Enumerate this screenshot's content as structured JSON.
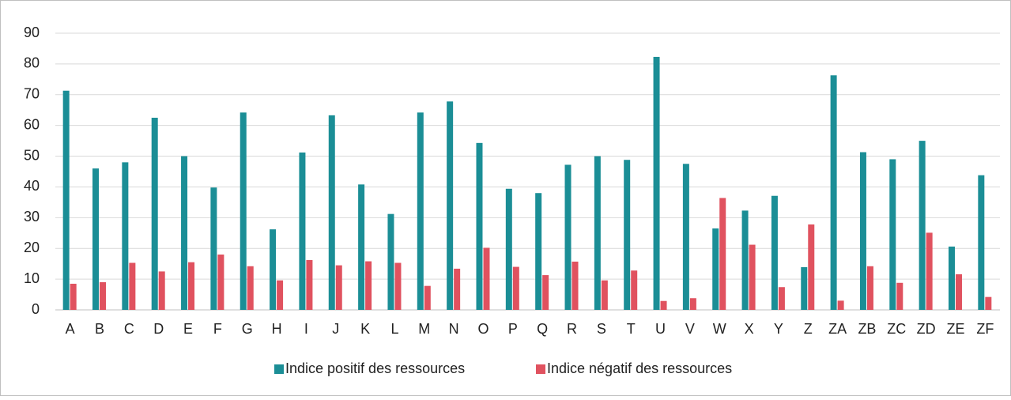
{
  "chart_data": {
    "type": "bar",
    "categories": [
      "A",
      "B",
      "C",
      "D",
      "E",
      "F",
      "G",
      "H",
      "I",
      "J",
      "K",
      "L",
      "M",
      "N",
      "O",
      "P",
      "Q",
      "R",
      "S",
      "T",
      "U",
      "V",
      "W",
      "X",
      "Y",
      "Z",
      "ZA",
      "ZB",
      "ZC",
      "ZD",
      "ZE",
      "ZF"
    ],
    "series": [
      {
        "name": "Indice positif des ressources",
        "color": "#1b8e96",
        "values": [
          71.3,
          46,
          48,
          62.5,
          50,
          39.8,
          64.2,
          26.2,
          51.2,
          63.3,
          40.8,
          31.2,
          64.2,
          67.8,
          54.3,
          39.4,
          38,
          47.2,
          50,
          48.8,
          82.3,
          47.5,
          26.5,
          32.3,
          37.1,
          13.9,
          76.3,
          51.3,
          49,
          55,
          20.6,
          43.8
        ]
      },
      {
        "name": "Indice négatif des ressources",
        "color": "#e0525f",
        "values": [
          8.5,
          9,
          15.3,
          12.5,
          15.5,
          18,
          14.2,
          9.6,
          16.2,
          14.5,
          15.8,
          15.3,
          7.8,
          13.4,
          20.2,
          14,
          11.3,
          15.7,
          9.6,
          12.8,
          2.9,
          3.8,
          36.4,
          21.2,
          7.4,
          27.8,
          3,
          14.2,
          8.8,
          25.1,
          11.6,
          4.2
        ]
      }
    ],
    "ylim": [
      0,
      90
    ],
    "yticks": [
      0,
      10,
      20,
      30,
      40,
      50,
      60,
      70,
      80,
      90
    ],
    "grid": true,
    "legend": "bottom"
  }
}
